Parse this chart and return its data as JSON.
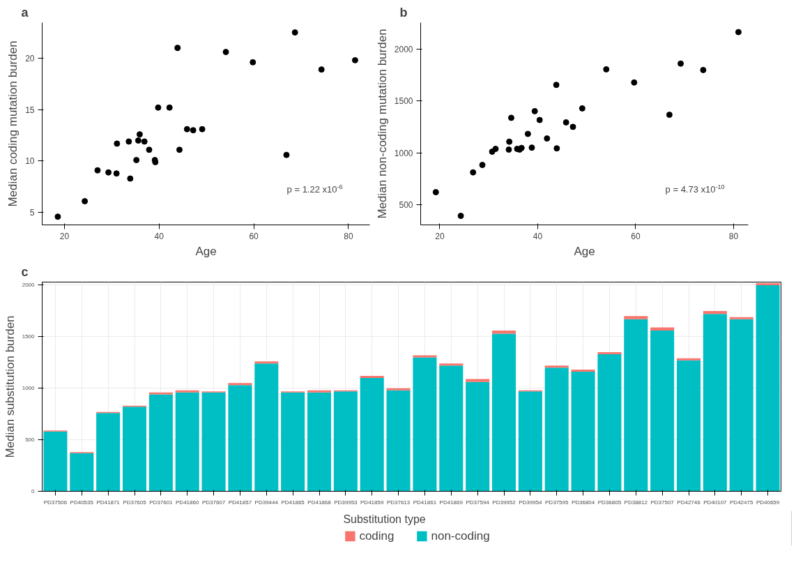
{
  "chart_data": [
    {
      "type": "scatter",
      "title": "a",
      "xlabel": "Age",
      "ylabel": "Median coding mutation burden",
      "marker": "circle",
      "grid": false,
      "xlim": [
        15.3,
        84.5
      ],
      "ylim": [
        3.8,
        23.45
      ],
      "xticks": [
        20,
        40,
        60,
        80
      ],
      "yticks": [
        5,
        10,
        15,
        20
      ],
      "annotations": [
        "p = 1.22 x10$^{-6}$"
      ],
      "series": [
        {
          "color": "#000000",
          "x": [
            18.6,
            24.3,
            27.0,
            29.3,
            31.0,
            31.1,
            33.6,
            33.9,
            35.2,
            35.6,
            35.9,
            36.9,
            37.9,
            39.1,
            39.2,
            39.8,
            42.2,
            43.9,
            44.3,
            45.9,
            47.2,
            49.1,
            54.1,
            59.8,
            66.9,
            68.7,
            74.3,
            81.4
          ],
          "values": [
            4.6,
            6.1,
            9.1,
            8.9,
            8.8,
            11.7,
            11.9,
            8.3,
            10.1,
            12.0,
            12.6,
            11.9,
            11.1,
            10.1,
            9.9,
            15.2,
            15.2,
            21.0,
            11.1,
            13.1,
            13.0,
            13.1,
            20.6,
            19.6,
            10.6,
            22.5,
            18.9,
            19.8
          ]
        }
      ]
    },
    {
      "type": "scatter",
      "title": "b",
      "xlabel": "Age",
      "ylabel": "Median non-coding mutation burden",
      "marker": "circle",
      "grid": false,
      "xlim": [
        16.1,
        83.0
      ],
      "ylim": [
        308,
        2255
      ],
      "xticks": [
        20,
        40,
        60,
        80
      ],
      "yticks": [
        500,
        1000,
        1500,
        2000
      ],
      "annotations": [
        "p = 4.73 x10$^{-10}$"
      ],
      "series": [
        {
          "color": "#000000",
          "x": [
            19.2,
            24.3,
            26.8,
            28.7,
            30.7,
            31.4,
            34.1,
            34.2,
            34.6,
            35.8,
            36.3,
            36.7,
            38.0,
            38.8,
            39.4,
            40.4,
            41.9,
            43.8,
            43.9,
            45.8,
            47.2,
            49.1,
            54.0,
            59.7,
            66.9,
            69.2,
            73.8,
            81.0
          ],
          "values": [
            623,
            395,
            814,
            885,
            1013,
            1040,
            1033,
            1109,
            1339,
            1040,
            1033,
            1049,
            1184,
            1052,
            1403,
            1318,
            1140,
            1656,
            1045,
            1295,
            1252,
            1430,
            1806,
            1679,
            1368,
            1861,
            1799,
            2164
          ]
        }
      ]
    },
    {
      "type": "bar",
      "title": "c",
      "ylabel": "Median substitution burden",
      "stacked": true,
      "grid": true,
      "legend": "bottom",
      "legend_title": "Substitution type",
      "ylim": [
        0,
        2030
      ],
      "yticks": [
        0,
        500,
        1000,
        1500,
        2000
      ],
      "categories": [
        "PD37506",
        "PD40535",
        "PD41871",
        "PD37605",
        "PD37601",
        "PD41860",
        "PD37607",
        "PD41857",
        "PD39444",
        "PD41865",
        "PD41868",
        "PD39953",
        "PD41859",
        "PD37613",
        "PD41861",
        "PD41869",
        "PD37594",
        "PD39952",
        "PD39954",
        "PD37595",
        "PD36804",
        "PD36805",
        "PD38812",
        "PD37507",
        "PD42746",
        "PD40107",
        "PD42475",
        "PD40659"
      ],
      "series": [
        {
          "name": "non-coding",
          "color": "#00bfc4",
          "values": [
            580,
            370,
            760,
            820,
            940,
            960,
            960,
            1030,
            1240,
            960,
            960,
            970,
            1100,
            980,
            1300,
            1220,
            1060,
            1530,
            970,
            1200,
            1160,
            1330,
            1670,
            1560,
            1270,
            1720,
            1670,
            2000
          ]
        },
        {
          "name": "coding",
          "color": "#f8766d",
          "values": [
            10,
            10,
            10,
            10,
            20,
            20,
            10,
            20,
            20,
            10,
            20,
            10,
            20,
            20,
            20,
            20,
            30,
            30,
            10,
            20,
            20,
            20,
            30,
            30,
            20,
            30,
            20,
            20
          ]
        }
      ]
    }
  ]
}
